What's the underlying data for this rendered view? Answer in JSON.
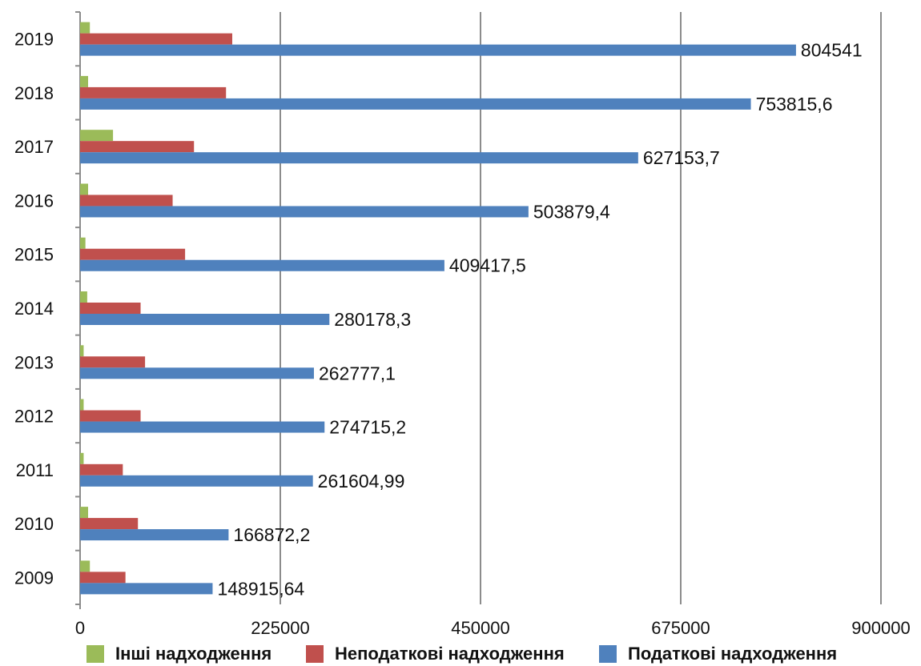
{
  "chart_data": {
    "type": "bar",
    "orientation": "horizontal",
    "categories": [
      "2009",
      "2010",
      "2011",
      "2012",
      "2013",
      "2014",
      "2015",
      "2016",
      "2017",
      "2018",
      "2019"
    ],
    "series": [
      {
        "name": "Інші надходження",
        "color": "#9bbb59",
        "values": [
          11000,
          9000,
          4000,
          4000,
          4000,
          8000,
          6000,
          9000,
          37000,
          9000,
          11000
        ]
      },
      {
        "name": "Неподаткові надходження",
        "color": "#c0504d",
        "values": [
          51000,
          65000,
          48000,
          68000,
          73000,
          68000,
          118000,
          104000,
          128000,
          164000,
          171000
        ]
      },
      {
        "name": "Податкові надходження",
        "color": "#4f81bd",
        "values": [
          148915.64,
          166872.2,
          261604.99,
          274715.2,
          262777.1,
          280178.3,
          409417.5,
          503879.4,
          627153.7,
          753815.6,
          804541
        ],
        "labels": [
          "148915,64",
          "166872,2",
          "261604,99",
          "274715,2",
          "262777,1",
          "280178,3",
          "409417,5",
          "503879,4",
          "627153,7",
          "753815,6",
          "804541"
        ]
      }
    ],
    "xlim": [
      0,
      900000
    ],
    "x_ticks": [
      0,
      225000,
      450000,
      675000,
      900000
    ],
    "x_tick_labels": [
      "0",
      "225000",
      "450000",
      "675000",
      "900000"
    ],
    "grid": true,
    "legend_position": "bottom"
  }
}
